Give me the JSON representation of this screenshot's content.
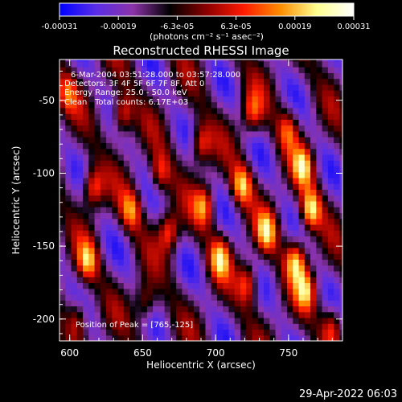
{
  "chart_data": {
    "type": "heatmap",
    "title": "Reconstructed RHESSI Image",
    "xlabel": "Heliocentric X (arcsec)",
    "ylabel": "Heliocentric Y (arcsec)",
    "xlim": [
      593,
      787
    ],
    "ylim": [
      -215,
      -22
    ],
    "xticks": [
      600,
      650,
      700,
      750
    ],
    "yticks": [
      -50,
      -100,
      -150,
      -200
    ],
    "colorbar": {
      "range": [
        -0.00031,
        0.00031
      ],
      "ticks": [
        "-0.00031",
        "-0.00019",
        "-6.3e-05",
        "6.3e-05",
        "0.00019",
        "0.00031"
      ],
      "unit_label": "(photons cm⁻² s⁻¹ asec⁻²)",
      "colormap": [
        "#0000ff",
        "#5a2ee6",
        "#8c33a8",
        "#000000",
        "#8c0000",
        "#ff1a00",
        "#ff8c00",
        "#ffff90",
        "#ffffff"
      ]
    },
    "annotations": {
      "time": "6-Mar-2004 03:51:28.000 to 03:57:28.000",
      "detectors": "Detectors: 3F 4F 5F 6F 7F 8F, Att 0",
      "energy": "Energy Range: 25.0 - 50.0 keV",
      "clean": "Clean",
      "counts": "Total counts: 6.17E+03",
      "peak": "Position of Peak = [765,-125]"
    },
    "peak": [
      765,
      -125
    ],
    "blobs": [
      {
        "x": 765,
        "y": -125,
        "v": 1.0
      },
      {
        "x": 760,
        "y": -95,
        "v": 0.8
      },
      {
        "x": 755,
        "y": -160,
        "v": 0.9
      },
      {
        "x": 762,
        "y": -180,
        "v": 0.75
      },
      {
        "x": 735,
        "y": -140,
        "v": 0.8
      },
      {
        "x": 718,
        "y": -108,
        "v": 0.85
      },
      {
        "x": 722,
        "y": -175,
        "v": 0.7
      },
      {
        "x": 703,
        "y": -158,
        "v": 0.8
      },
      {
        "x": 692,
        "y": -122,
        "v": 0.75
      },
      {
        "x": 690,
        "y": -80,
        "v": 0.7
      },
      {
        "x": 668,
        "y": -140,
        "v": 0.75
      },
      {
        "x": 662,
        "y": -100,
        "v": 0.6
      },
      {
        "x": 642,
        "y": -125,
        "v": 0.7
      },
      {
        "x": 636,
        "y": -60,
        "v": 0.75
      },
      {
        "x": 616,
        "y": -110,
        "v": 0.8
      },
      {
        "x": 612,
        "y": -160,
        "v": 0.75
      },
      {
        "x": 605,
        "y": -200,
        "v": 0.6
      },
      {
        "x": 725,
        "y": -58,
        "v": 0.65
      },
      {
        "x": 750,
        "y": -70,
        "v": 0.6
      },
      {
        "x": 780,
        "y": -205,
        "v": 0.6
      },
      {
        "x": 652,
        "y": -188,
        "v": 0.55
      },
      {
        "x": 598,
        "y": -45,
        "v": 0.55
      }
    ]
  },
  "footer": {
    "date": "29-Apr-2022 06:03"
  }
}
